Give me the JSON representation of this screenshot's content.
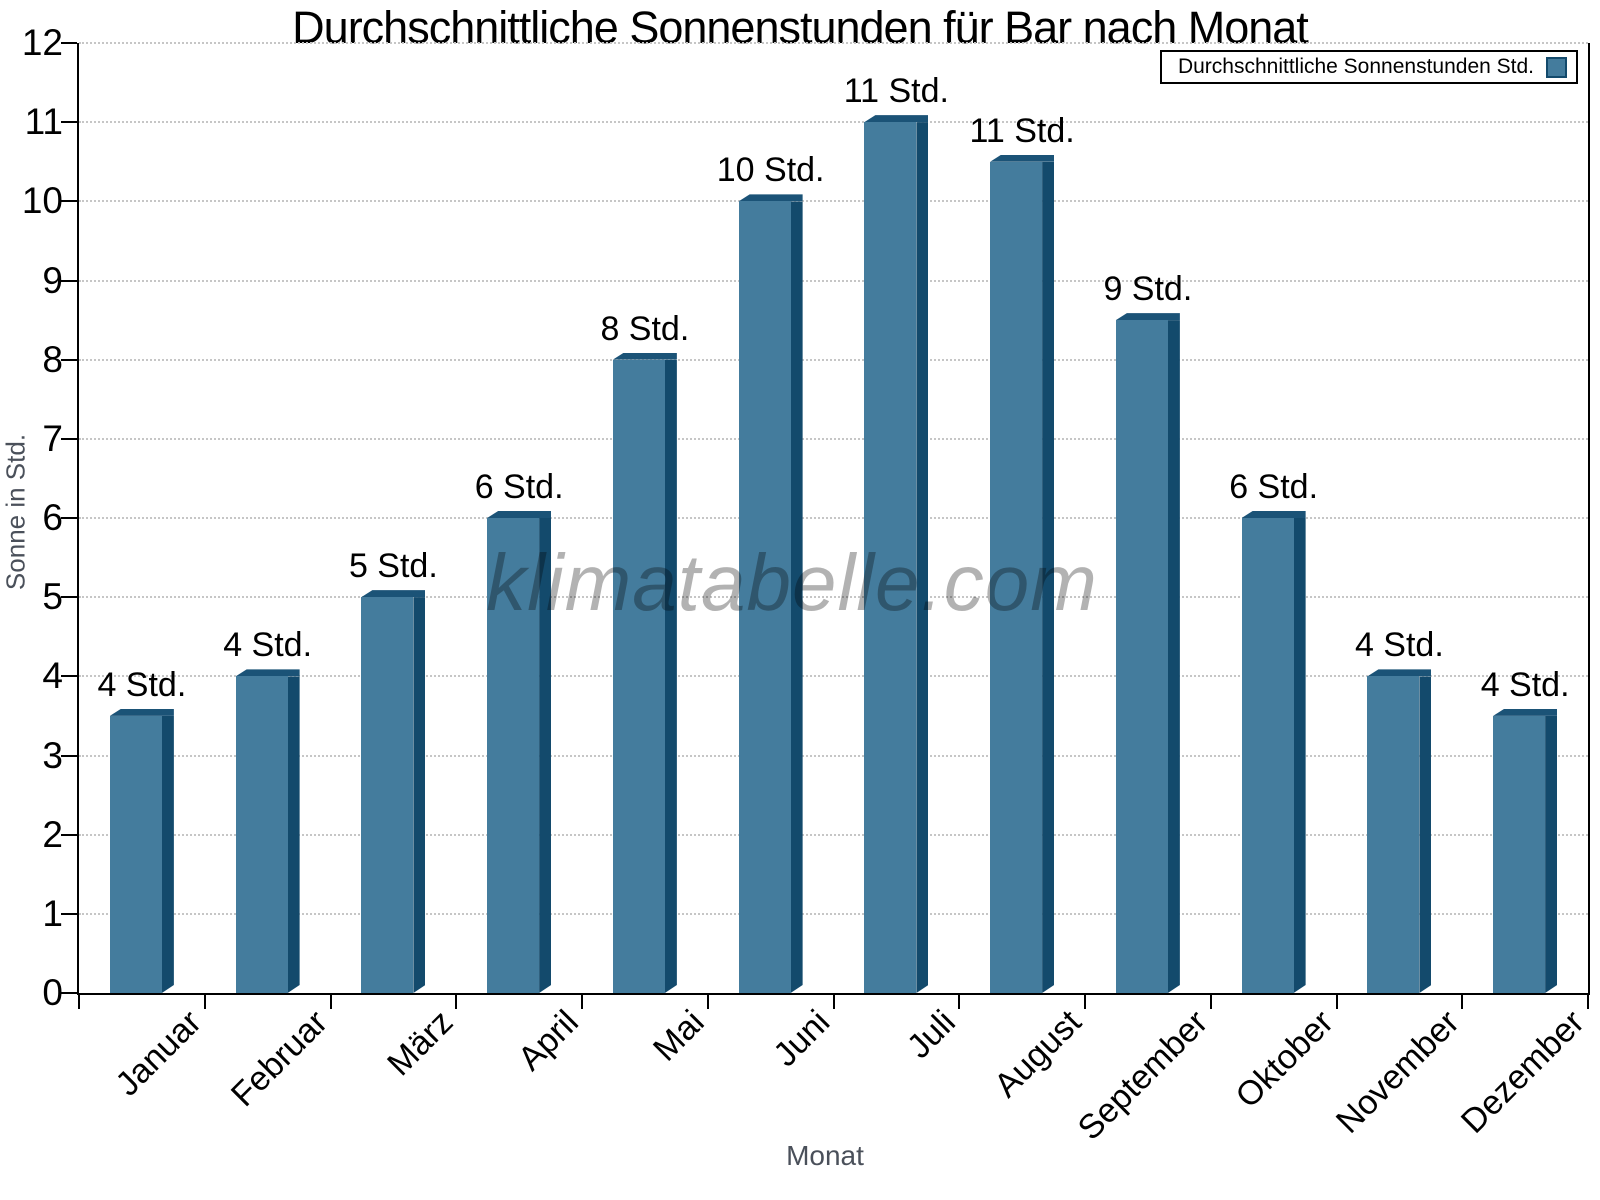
{
  "title": "Durchschnittliche Sonnenstunden für Bar nach Monat",
  "legend": {
    "label": "Durchschnittliche Sonnenstunden Std."
  },
  "watermark": "klimatabelle.com",
  "x_axis_title": "Monat",
  "y_axis_title": "Sonne in Std.",
  "colors": {
    "bar_face": "#447C9D",
    "bar_side": "#134A6C",
    "bar_top": "#1B5377",
    "grid": "#c6c6c6",
    "axis": "#000000",
    "axis_title_text": "#4A505A",
    "watermark_gray": "#b3b3b3"
  },
  "chart_data": {
    "type": "bar",
    "title": "Durchschnittliche Sonnenstunden für Bar nach Monat",
    "xlabel": "Monat",
    "ylabel": "Sonne in Std.",
    "categories": [
      "Januar",
      "Februar",
      "März",
      "April",
      "Mai",
      "Juni",
      "Juli",
      "August",
      "September",
      "Oktober",
      "November",
      "Dezember"
    ],
    "values": [
      3.5,
      4,
      5,
      6,
      8,
      10,
      11,
      10.5,
      8.5,
      6,
      4,
      3.5
    ],
    "bar_labels": [
      "4 Std.",
      "4 Std.",
      "5 Std.",
      "6 Std.",
      "8 Std.",
      "10 Std.",
      "11 Std.",
      "11 Std.",
      "9 Std.",
      "6 Std.",
      "4 Std.",
      "4 Std."
    ],
    "ylim": [
      0,
      12
    ],
    "yticks": [
      0,
      1,
      2,
      3,
      4,
      5,
      6,
      7,
      8,
      9,
      10,
      11,
      12
    ],
    "grid": true,
    "legend_entries": [
      "Durchschnittliche Sonnenstunden Std."
    ],
    "legend_position": "top-right"
  }
}
